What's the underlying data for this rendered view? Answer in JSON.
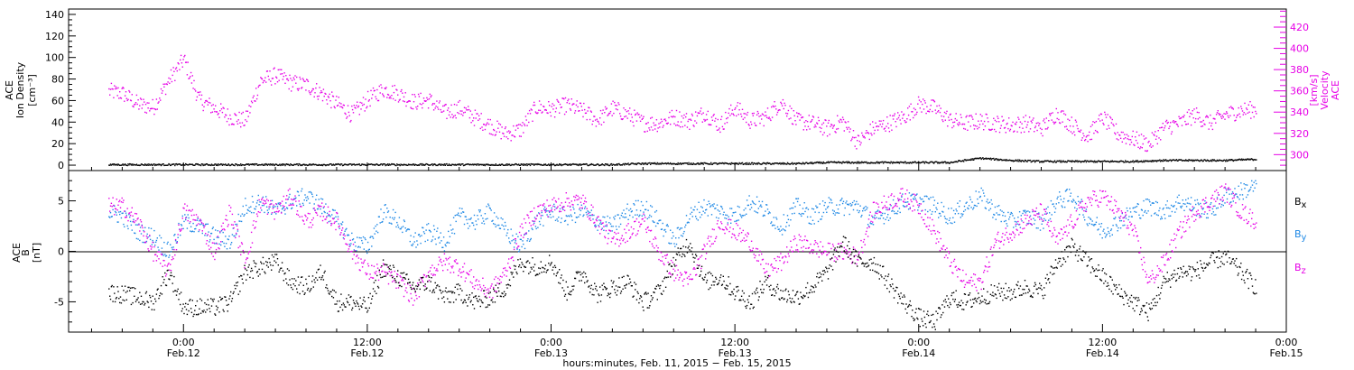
{
  "chart_data": [
    {
      "type": "scatter",
      "panel": "top",
      "y_axis_left": {
        "label_lines": [
          "ACE",
          "Ion Density",
          "[cm⁻³]"
        ],
        "range": [
          -5,
          145
        ],
        "ticks": [
          0,
          20,
          40,
          60,
          80,
          100,
          120,
          140
        ],
        "tick_labels": [
          "0",
          "20",
          "40",
          "60",
          "80",
          "100",
          "120",
          "140"
        ]
      },
      "y_axis_right": {
        "label_lines": [
          "ACE",
          "Velocity",
          "[km/s]"
        ],
        "range": [
          285,
          437
        ],
        "ticks": [
          300,
          320,
          340,
          360,
          380,
          400,
          420
        ],
        "tick_labels": [
          "300",
          "320",
          "340",
          "360",
          "380",
          "400",
          "420"
        ]
      },
      "series": [
        {
          "role": "ion density",
          "axis": "left",
          "color": "#000000",
          "x_hours": [
            -4.9,
            -2,
            0,
            2,
            4,
            6,
            8,
            10,
            12,
            14,
            16,
            18,
            20,
            22,
            24,
            26,
            28,
            30,
            32,
            34,
            36,
            38,
            40,
            42,
            44,
            46,
            48,
            50,
            52,
            54,
            56,
            58,
            60,
            62,
            64,
            66,
            68,
            70
          ],
          "values": [
            1,
            1,
            1,
            1,
            1,
            1,
            1,
            1,
            1,
            1,
            1,
            1,
            1,
            1,
            1,
            1,
            1,
            2,
            2,
            2,
            2,
            2,
            2,
            3,
            3,
            3,
            3,
            3,
            7,
            5,
            4,
            4,
            4,
            4,
            5,
            5,
            5,
            6
          ]
        },
        {
          "role": "velocity",
          "axis": "right",
          "color": "#e600e6",
          "x_hours": [
            -4.9,
            -4,
            -3,
            -2,
            -1,
            0,
            1,
            2,
            3,
            4,
            5,
            6,
            7,
            8,
            9,
            10,
            11,
            12,
            13,
            14,
            15,
            16,
            17,
            18,
            19,
            20,
            21,
            22,
            23,
            24,
            25,
            26,
            27,
            28,
            29,
            30,
            31,
            32,
            33,
            34,
            35,
            36,
            37,
            38,
            39,
            40,
            41,
            42,
            43,
            44,
            45,
            46,
            47,
            48,
            49,
            50,
            51,
            52,
            53,
            54,
            55,
            56,
            57,
            58,
            59,
            60,
            61,
            62,
            63,
            64,
            65,
            66,
            67,
            68,
            69,
            70
          ],
          "values": [
            360,
            358,
            348,
            345,
            370,
            390,
            352,
            344,
            336,
            332,
            370,
            375,
            368,
            366,
            358,
            348,
            338,
            352,
            362,
            358,
            350,
            352,
            340,
            344,
            335,
            328,
            320,
            324,
            345,
            343,
            347,
            342,
            333,
            344,
            338,
            330,
            330,
            336,
            332,
            340,
            328,
            345,
            332,
            336,
            350,
            332,
            330,
            325,
            332,
            312,
            325,
            330,
            336,
            348,
            344,
            333,
            330,
            332,
            330,
            328,
            330,
            325,
            340,
            328,
            318,
            335,
            320,
            315,
            310,
            326,
            330,
            338,
            330,
            338,
            342,
            343
          ]
        }
      ]
    },
    {
      "type": "scatter",
      "panel": "bottom",
      "y_axis_left": {
        "label_lines": [
          "ACE",
          "B",
          "[nT]"
        ],
        "range": [
          -8,
          8
        ],
        "ticks": [
          -5,
          0,
          5
        ],
        "tick_labels": [
          "-5",
          "0",
          "5"
        ]
      },
      "zero_line": true,
      "legend_position": "right",
      "series": [
        {
          "name": "Bx",
          "color": "#000000",
          "x_hours": [
            -4.9,
            -4,
            -3,
            -2,
            -1,
            0,
            1,
            2,
            3,
            4,
            5,
            6,
            7,
            8,
            9,
            10,
            11,
            12,
            13,
            14,
            15,
            16,
            17,
            18,
            19,
            20,
            21,
            22,
            23,
            24,
            25,
            26,
            27,
            28,
            29,
            30,
            31,
            32,
            33,
            34,
            35,
            36,
            37,
            38,
            39,
            40,
            41,
            42,
            43,
            44,
            45,
            46,
            47,
            48,
            49,
            50,
            51,
            52,
            53,
            54,
            55,
            56,
            57,
            58,
            59,
            60,
            61,
            62,
            63,
            64,
            65,
            66,
            67,
            68,
            69,
            70
          ],
          "values": [
            -4,
            -4.2,
            -4.5,
            -5,
            -2,
            -5.5,
            -5.5,
            -5.5,
            -5,
            -2,
            -1.5,
            -1,
            -3,
            -3.5,
            -2,
            -5,
            -5,
            -5.5,
            -1.5,
            -2.5,
            -3.5,
            -3,
            -4.5,
            -4,
            -5,
            -4.5,
            -3.5,
            -1,
            -1.5,
            -1,
            -4,
            -2,
            -4.2,
            -3.5,
            -3,
            -5,
            -4,
            -1,
            1,
            -3,
            -2.5,
            -4,
            -5,
            -3,
            -4.2,
            -4.5,
            -3.5,
            -2,
            1,
            -1,
            -1,
            -3,
            -5,
            -6.5,
            -7,
            -4.5,
            -5,
            -4.5,
            -4,
            -4,
            -3.5,
            -4,
            -1,
            0.5,
            -1,
            -2.5,
            -4,
            -5,
            -6,
            -3,
            -2,
            -2,
            -1,
            -0.5,
            -2,
            -3.5
          ]
        },
        {
          "name": "By",
          "color": "#1e88e5",
          "x_hours": [
            -4.9,
            -4,
            -3,
            -2,
            -1,
            0,
            1,
            2,
            3,
            4,
            5,
            6,
            7,
            8,
            9,
            10,
            11,
            12,
            13,
            14,
            15,
            16,
            17,
            18,
            19,
            20,
            21,
            22,
            23,
            24,
            25,
            26,
            27,
            28,
            29,
            30,
            31,
            32,
            33,
            34,
            35,
            36,
            37,
            38,
            39,
            40,
            41,
            42,
            43,
            44,
            45,
            46,
            47,
            48,
            49,
            50,
            51,
            52,
            53,
            54,
            55,
            56,
            57,
            58,
            59,
            60,
            61,
            62,
            63,
            64,
            65,
            66,
            67,
            68,
            69,
            70
          ],
          "values": [
            4,
            3.5,
            2,
            1.5,
            0,
            3,
            2.5,
            1.5,
            1,
            4.5,
            5,
            4,
            5,
            5.5,
            4.5,
            3,
            1,
            0.5,
            4,
            3,
            1,
            2,
            1,
            3.5,
            3,
            4,
            2,
            0.5,
            3,
            4,
            3.5,
            4,
            3,
            2.5,
            4,
            4.5,
            3,
            1,
            3.5,
            4.5,
            4,
            3.5,
            5,
            4,
            2.5,
            4.5,
            3.5,
            4.5,
            4.5,
            4.5,
            3,
            4,
            5,
            5,
            4.5,
            3.5,
            4.5,
            5.5,
            4,
            3,
            3.5,
            3,
            5,
            5.5,
            3.5,
            2,
            3,
            4,
            4.5,
            4,
            5,
            4.5,
            4,
            5.5,
            6,
            6.5
          ]
        },
        {
          "name": "Bz",
          "color": "#e600e6",
          "x_hours": [
            -4.9,
            -4,
            -3,
            -2,
            -1,
            0,
            1,
            2,
            3,
            4,
            5,
            6,
            7,
            8,
            9,
            10,
            11,
            12,
            13,
            14,
            15,
            16,
            17,
            18,
            19,
            20,
            21,
            22,
            23,
            24,
            25,
            26,
            27,
            28,
            29,
            30,
            31,
            32,
            33,
            34,
            35,
            36,
            37,
            38,
            39,
            40,
            41,
            42,
            43,
            44,
            45,
            46,
            47,
            48,
            49,
            50,
            51,
            52,
            53,
            54,
            55,
            56,
            57,
            58,
            59,
            60,
            61,
            62,
            63,
            64,
            65,
            66,
            67,
            68,
            69,
            70
          ],
          "values": [
            4.5,
            4.5,
            3,
            0,
            -2,
            4,
            3,
            0,
            4,
            -1,
            5,
            4,
            5.5,
            3,
            4,
            3,
            0,
            -2,
            -2,
            -3,
            -4.5,
            -2,
            -1,
            -1.5,
            -3,
            -4,
            -2,
            2,
            4,
            4.5,
            5,
            5,
            3,
            1,
            2,
            3,
            0,
            -2,
            -3,
            0,
            3,
            2,
            1,
            -2,
            -1,
            1,
            0.5,
            0,
            0,
            -0.5,
            4,
            5,
            5.5,
            4.5,
            2,
            -1,
            -3,
            -3,
            1,
            2,
            3,
            4,
            1,
            3,
            5,
            5.5,
            4,
            2,
            -3,
            -1,
            2,
            4,
            5,
            6,
            4,
            3
          ]
        }
      ]
    }
  ],
  "x_axis": {
    "range_hours": [
      -7.5,
      72
    ],
    "major_ticks_hours": [
      0,
      12,
      24,
      36,
      48,
      60,
      72
    ],
    "tick_time_labels": [
      "0:00",
      "12:00",
      "0:00",
      "12:00",
      "0:00",
      "12:00",
      "0:00"
    ],
    "tick_date_labels": [
      "Feb.12",
      "Feb.12",
      "Feb.13",
      "Feb.13",
      "Feb.14",
      "Feb.14",
      "Feb.15"
    ],
    "label": "hours:minutes, Feb. 11, 2015 − Feb. 15, 2015"
  },
  "legend": {
    "bx": {
      "base": "B",
      "sub": "x",
      "color": "#000000"
    },
    "by": {
      "base": "B",
      "sub": "y",
      "color": "#1e88e5"
    },
    "bz": {
      "base": "B",
      "sub": "z",
      "color": "#e600e6"
    }
  }
}
